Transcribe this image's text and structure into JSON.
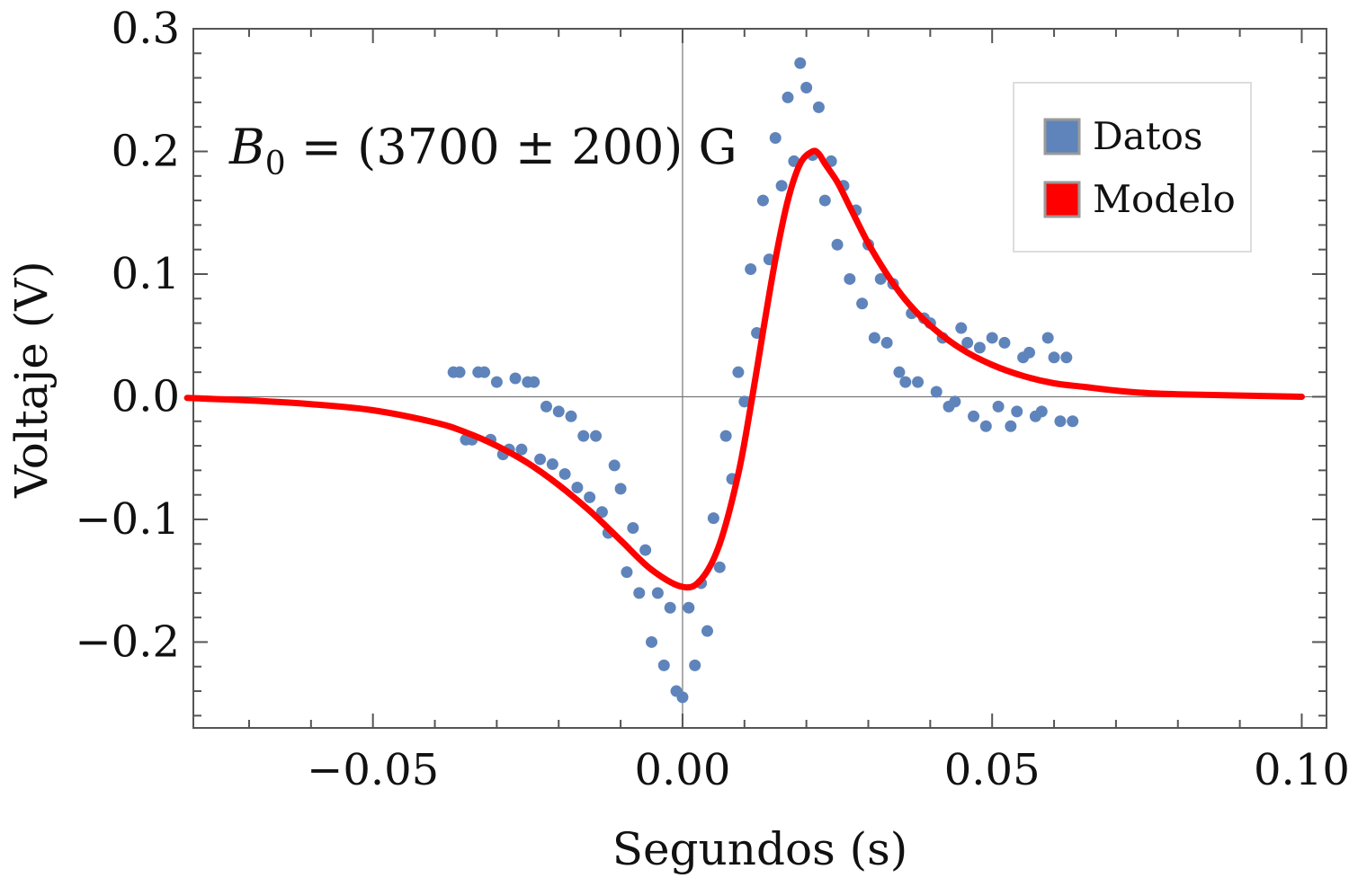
{
  "chart_data": {
    "type": "scatter",
    "xlabel": "Segundos (s)",
    "ylabel": "Voltaje (V)",
    "xlim": [
      -0.079,
      0.104
    ],
    "ylim": [
      -0.27,
      0.3
    ],
    "x_ticks": [
      -0.05,
      0.0,
      0.05,
      0.1
    ],
    "x_tick_labels": [
      "−0.05",
      "0.00",
      "0.05",
      "0.10"
    ],
    "y_ticks": [
      -0.2,
      -0.1,
      0.0,
      0.1,
      0.2,
      0.3
    ],
    "y_tick_labels": [
      "−0.2",
      "−0.1",
      "0.0",
      "0.1",
      "0.2",
      "0.3"
    ],
    "grid": false,
    "legend_position": "top-right",
    "annotation": {
      "symbol": "B",
      "subscript": "0",
      "text": " = (3700 ± 200) G"
    },
    "colors": {
      "datos": "#5f84bb",
      "modelo": "#ff0000",
      "axis": "#555555"
    },
    "series": [
      {
        "name": "Datos",
        "kind": "scatter",
        "x": [
          -0.037,
          -0.036,
          -0.035,
          -0.034,
          -0.033,
          -0.032,
          -0.031,
          -0.03,
          -0.029,
          -0.028,
          -0.027,
          -0.026,
          -0.025,
          -0.024,
          -0.023,
          -0.022,
          -0.021,
          -0.02,
          -0.019,
          -0.018,
          -0.017,
          -0.016,
          -0.015,
          -0.014,
          -0.013,
          -0.012,
          -0.011,
          -0.01,
          -0.009,
          -0.008,
          -0.007,
          -0.006,
          -0.005,
          -0.004,
          -0.003,
          -0.002,
          -0.001,
          0.0,
          0.001,
          0.002,
          0.003,
          0.004,
          0.005,
          0.006,
          0.007,
          0.008,
          0.009,
          0.01,
          0.011,
          0.012,
          0.013,
          0.014,
          0.015,
          0.016,
          0.017,
          0.018,
          0.019,
          0.02,
          0.021,
          0.022,
          0.023,
          0.024,
          0.025,
          0.026,
          0.027,
          0.028,
          0.029,
          0.03,
          0.031,
          0.032,
          0.033,
          0.034,
          0.035,
          0.036,
          0.037,
          0.038,
          0.039,
          0.04,
          0.041,
          0.042,
          0.043,
          0.044,
          0.045,
          0.046,
          0.047,
          0.048,
          0.049,
          0.05,
          0.051,
          0.052,
          0.053,
          0.054,
          0.055,
          0.056,
          0.057,
          0.058,
          0.059,
          0.06,
          0.061,
          0.062,
          0.063
        ],
        "y": [
          0.02,
          0.02,
          -0.035,
          -0.035,
          0.02,
          0.02,
          -0.035,
          0.012,
          -0.047,
          -0.043,
          0.015,
          -0.043,
          0.012,
          0.012,
          -0.051,
          -0.008,
          -0.055,
          -0.012,
          -0.063,
          -0.016,
          -0.074,
          -0.032,
          -0.082,
          -0.032,
          -0.094,
          -0.111,
          -0.056,
          -0.075,
          -0.143,
          -0.107,
          -0.16,
          -0.125,
          -0.2,
          -0.16,
          -0.219,
          -0.172,
          -0.24,
          -0.245,
          -0.172,
          -0.219,
          -0.152,
          -0.191,
          -0.099,
          -0.139,
          -0.032,
          -0.067,
          0.02,
          -0.004,
          0.104,
          0.052,
          0.16,
          0.112,
          0.211,
          0.172,
          0.244,
          0.192,
          0.272,
          0.252,
          0.197,
          0.236,
          0.16,
          0.192,
          0.124,
          0.172,
          0.096,
          0.152,
          0.076,
          0.124,
          0.048,
          0.096,
          0.044,
          0.092,
          0.02,
          0.012,
          0.068,
          0.012,
          0.064,
          0.06,
          0.004,
          0.048,
          -0.008,
          -0.004,
          0.056,
          0.044,
          -0.016,
          0.04,
          -0.024,
          0.048,
          -0.008,
          0.044,
          -0.024,
          -0.012,
          0.032,
          0.036,
          -0.016,
          -0.012,
          0.048,
          0.032,
          -0.02,
          0.032,
          -0.02
        ]
      },
      {
        "name": "Modelo",
        "kind": "line",
        "x": [
          -0.08,
          -0.07,
          -0.06,
          -0.05,
          -0.04,
          -0.035,
          -0.03,
          -0.025,
          -0.02,
          -0.015,
          -0.01,
          -0.005,
          0.0,
          0.003,
          0.006,
          0.009,
          0.011,
          0.013,
          0.015,
          0.017,
          0.019,
          0.021,
          0.022,
          0.023,
          0.025,
          0.027,
          0.03,
          0.033,
          0.036,
          0.04,
          0.045,
          0.05,
          0.055,
          0.06,
          0.065,
          0.07,
          0.075,
          0.08,
          0.09,
          0.1
        ],
        "y": [
          -0.001,
          -0.003,
          -0.006,
          -0.011,
          -0.021,
          -0.029,
          -0.04,
          -0.054,
          -0.072,
          -0.093,
          -0.117,
          -0.141,
          -0.155,
          -0.149,
          -0.12,
          -0.063,
          -0.008,
          0.053,
          0.112,
          0.16,
          0.19,
          0.2,
          0.198,
          0.19,
          0.175,
          0.155,
          0.125,
          0.1,
          0.079,
          0.058,
          0.039,
          0.026,
          0.017,
          0.011,
          0.008,
          0.005,
          0.003,
          0.002,
          0.001,
          0.0
        ]
      }
    ]
  }
}
